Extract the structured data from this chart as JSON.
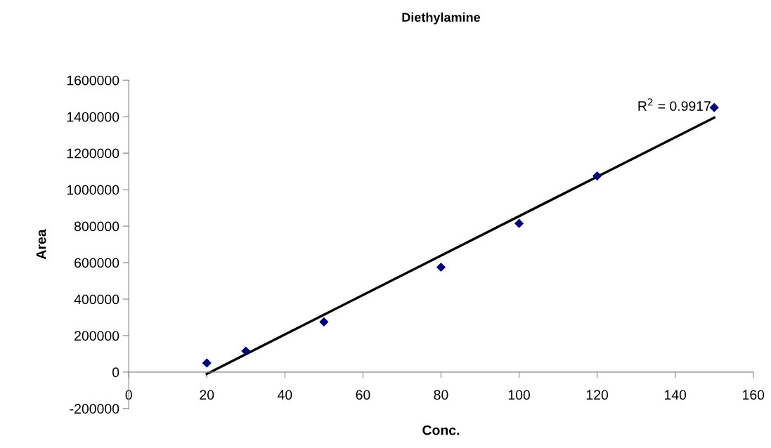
{
  "chart_data": {
    "type": "scatter",
    "title": "Diethylamine",
    "xlabel": "Conc.",
    "ylabel": "Area",
    "series": [
      {
        "color": "#000080",
        "x": [
          20,
          30,
          50,
          80,
          100,
          120,
          150
        ],
        "values": [
          50000,
          115000,
          275000,
          575000,
          815000,
          1075000,
          1450000
        ],
        "marker": "diamond"
      },
      {
        "type": "line",
        "color": "#000000",
        "x": [
          20,
          150
        ],
        "values": [
          -10000,
          1395000
        ],
        "line_style": "solid"
      }
    ],
    "annotations": [
      {
        "text": "R$^{2}$ = 0.9917",
        "x": 150,
        "y": 1395000
      }
    ],
    "xlim": [
      0,
      160
    ],
    "xticks": [
      0,
      20,
      40,
      60,
      80,
      100,
      120,
      140,
      160
    ],
    "ylim": [
      -200000,
      1600000
    ],
    "yticks": [
      -200000,
      0,
      200000,
      400000,
      600000,
      800000,
      1000000,
      1200000,
      1400000,
      1600000
    ],
    "grid": false,
    "legend": false
  }
}
